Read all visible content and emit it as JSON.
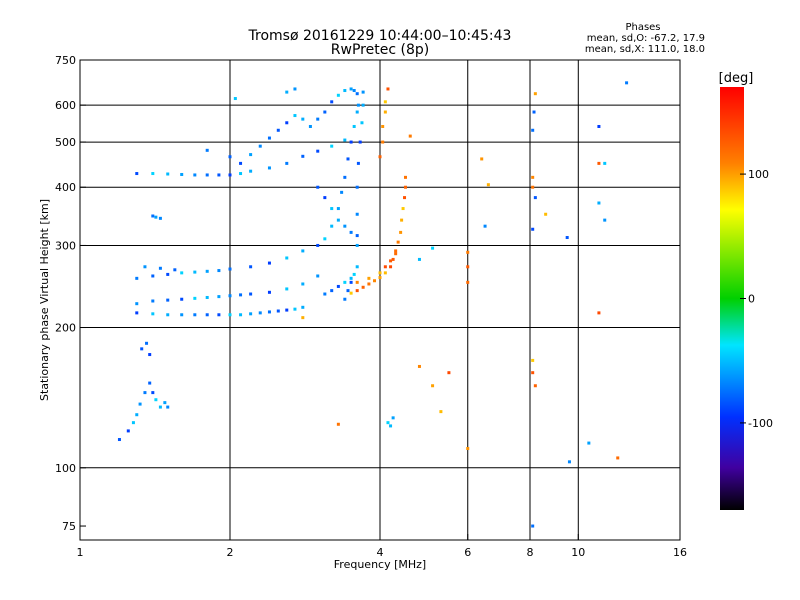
{
  "chart_data": {
    "type": "scatter",
    "title": "Tromsø 20161229 10:44:00–10:45:43",
    "subtitle": "RwPretec (8p)",
    "xlabel": "Frequency [MHz]",
    "ylabel": "Stationary phase Virtual Height [km]",
    "x_scale": "log",
    "y_scale": "log",
    "xlim": [
      1,
      16
    ],
    "ylim": [
      70,
      750
    ],
    "x_ticks": [
      1,
      2,
      4,
      6,
      8,
      10,
      16
    ],
    "y_ticks": [
      75,
      100,
      200,
      300,
      400,
      500,
      600,
      750
    ],
    "x_grid": [
      2,
      4,
      6,
      8,
      10
    ],
    "y_grid": [
      100,
      200,
      300,
      400,
      500,
      600
    ],
    "grid": true,
    "colorbar": {
      "label": "[deg]",
      "ticks": [
        100,
        0,
        -100
      ],
      "range": [
        -170,
        170
      ],
      "colormap": "rainbow"
    },
    "stats": {
      "heading": "Phases",
      "line_o": "mean, sd,O: -67.2, 17.9",
      "line_x": "mean, sd,X: 111.0, 18.0"
    },
    "series": [
      {
        "mode": "O",
        "phase": -67.2,
        "points": [
          [
            1.3,
            215
          ],
          [
            1.4,
            214
          ],
          [
            1.5,
            213
          ],
          [
            1.6,
            213
          ],
          [
            1.7,
            213
          ],
          [
            1.8,
            213
          ],
          [
            1.9,
            213
          ],
          [
            2.0,
            213
          ],
          [
            2.1,
            213
          ],
          [
            2.2,
            214
          ],
          [
            2.3,
            215
          ],
          [
            2.4,
            216
          ],
          [
            2.5,
            217
          ],
          [
            2.6,
            218
          ],
          [
            2.7,
            219
          ],
          [
            2.8,
            221
          ],
          [
            1.3,
            225
          ],
          [
            1.4,
            228
          ],
          [
            1.5,
            229
          ],
          [
            1.6,
            230
          ],
          [
            1.7,
            231
          ],
          [
            1.8,
            232
          ],
          [
            1.9,
            233
          ],
          [
            2.0,
            234
          ],
          [
            2.1,
            235
          ],
          [
            2.2,
            236
          ],
          [
            2.4,
            238
          ],
          [
            2.6,
            242
          ],
          [
            2.8,
            248
          ],
          [
            3.0,
            258
          ],
          [
            1.3,
            255
          ],
          [
            1.4,
            258
          ],
          [
            1.5,
            260
          ],
          [
            1.6,
            262
          ],
          [
            1.7,
            263
          ],
          [
            1.8,
            264
          ],
          [
            1.9,
            265
          ],
          [
            2.0,
            267
          ],
          [
            2.2,
            270
          ],
          [
            2.4,
            275
          ],
          [
            2.6,
            282
          ],
          [
            2.8,
            292
          ],
          [
            1.35,
            270
          ],
          [
            1.45,
            268
          ],
          [
            1.55,
            266
          ],
          [
            1.3,
            428
          ],
          [
            1.4,
            428
          ],
          [
            1.5,
            427
          ],
          [
            1.6,
            426
          ],
          [
            1.7,
            425
          ],
          [
            1.8,
            425
          ],
          [
            1.9,
            425
          ],
          [
            2.0,
            425
          ],
          [
            2.1,
            428
          ],
          [
            2.2,
            433
          ],
          [
            2.4,
            440
          ],
          [
            2.6,
            450
          ],
          [
            2.8,
            466
          ],
          [
            3.0,
            478
          ],
          [
            3.2,
            490
          ],
          [
            3.4,
            505
          ],
          [
            2.2,
            470
          ],
          [
            2.3,
            490
          ],
          [
            2.4,
            510
          ],
          [
            2.5,
            530
          ],
          [
            2.6,
            550
          ],
          [
            2.7,
            570
          ],
          [
            2.8,
            560
          ],
          [
            2.9,
            540
          ],
          [
            3.0,
            560
          ],
          [
            3.1,
            580
          ],
          [
            3.2,
            610
          ],
          [
            3.3,
            630
          ],
          [
            3.4,
            645
          ],
          [
            3.5,
            650
          ],
          [
            3.55,
            645
          ],
          [
            3.6,
            635
          ],
          [
            3.0,
            400
          ],
          [
            3.1,
            380
          ],
          [
            3.2,
            360
          ],
          [
            3.3,
            340
          ],
          [
            3.4,
            330
          ],
          [
            3.5,
            320
          ],
          [
            3.6,
            315
          ],
          [
            3.0,
            300
          ],
          [
            3.1,
            310
          ],
          [
            3.2,
            330
          ],
          [
            3.3,
            360
          ],
          [
            3.35,
            390
          ],
          [
            3.4,
            420
          ],
          [
            3.45,
            460
          ],
          [
            3.5,
            500
          ],
          [
            3.55,
            540
          ],
          [
            3.6,
            580
          ],
          [
            3.62,
            600
          ],
          [
            3.4,
            230
          ],
          [
            3.45,
            240
          ],
          [
            3.5,
            250
          ],
          [
            3.55,
            260
          ],
          [
            3.6,
            270
          ],
          [
            3.6,
            300
          ],
          [
            3.6,
            350
          ],
          [
            3.6,
            400
          ],
          [
            3.62,
            450
          ],
          [
            3.65,
            500
          ],
          [
            3.68,
            550
          ],
          [
            3.7,
            600
          ],
          [
            3.7,
            640
          ],
          [
            3.1,
            236
          ],
          [
            3.2,
            240
          ],
          [
            3.3,
            245
          ],
          [
            3.4,
            250
          ],
          [
            3.5,
            255
          ],
          [
            1.42,
            345
          ],
          [
            1.45,
            343
          ],
          [
            1.4,
            347
          ],
          [
            1.2,
            115
          ],
          [
            1.25,
            120
          ],
          [
            1.28,
            125
          ],
          [
            1.3,
            130
          ],
          [
            1.32,
            137
          ],
          [
            1.35,
            145
          ],
          [
            1.38,
            152
          ],
          [
            1.4,
            145
          ],
          [
            1.42,
            140
          ],
          [
            1.45,
            135
          ],
          [
            1.48,
            138
          ],
          [
            1.5,
            135
          ],
          [
            1.36,
            185
          ],
          [
            1.33,
            180
          ],
          [
            1.38,
            175
          ],
          [
            2.05,
            620
          ],
          [
            2.6,
            640
          ],
          [
            2.7,
            650
          ],
          [
            1.8,
            480
          ],
          [
            2.0,
            465
          ],
          [
            2.1,
            450
          ],
          [
            4.15,
            125
          ],
          [
            4.2,
            123
          ],
          [
            4.25,
            128
          ],
          [
            6.5,
            330
          ],
          [
            8.1,
            530
          ],
          [
            9.5,
            312
          ],
          [
            11.0,
            540
          ],
          [
            11.3,
            450
          ],
          [
            11.0,
            370
          ],
          [
            11.3,
            340
          ],
          [
            12.5,
            670
          ],
          [
            8.15,
            580
          ],
          [
            8.1,
            325
          ],
          [
            5.1,
            296
          ],
          [
            4.8,
            280
          ],
          [
            10.5,
            113
          ],
          [
            9.6,
            103
          ],
          [
            8.1,
            75
          ],
          [
            8.2,
            380
          ]
        ]
      },
      {
        "mode": "X",
        "phase": 111.0,
        "points": [
          [
            3.5,
            237
          ],
          [
            3.6,
            240
          ],
          [
            3.7,
            244
          ],
          [
            3.8,
            248
          ],
          [
            3.9,
            252
          ],
          [
            4.0,
            256
          ],
          [
            4.1,
            262
          ],
          [
            4.2,
            270
          ],
          [
            4.25,
            280
          ],
          [
            4.3,
            292
          ],
          [
            4.35,
            305
          ],
          [
            4.4,
            320
          ],
          [
            4.42,
            340
          ],
          [
            4.45,
            360
          ],
          [
            4.48,
            380
          ],
          [
            4.5,
            400
          ],
          [
            4.5,
            420
          ],
          [
            3.6,
            250
          ],
          [
            3.8,
            255
          ],
          [
            4.0,
            262
          ],
          [
            4.1,
            270
          ],
          [
            4.2,
            278
          ],
          [
            4.3,
            288
          ],
          [
            4.05,
            500
          ],
          [
            4.05,
            540
          ],
          [
            4.1,
            580
          ],
          [
            4.1,
            610
          ],
          [
            4.15,
            650
          ],
          [
            4.0,
            465
          ],
          [
            3.3,
            124
          ],
          [
            4.8,
            165
          ],
          [
            5.1,
            150
          ],
          [
            5.3,
            132
          ],
          [
            5.5,
            160
          ],
          [
            6.0,
            270
          ],
          [
            6.0,
            250
          ],
          [
            6.0,
            290
          ],
          [
            6.4,
            460
          ],
          [
            6.6,
            405
          ],
          [
            8.1,
            170
          ],
          [
            8.1,
            160
          ],
          [
            8.2,
            150
          ],
          [
            8.1,
            400
          ],
          [
            8.1,
            420
          ],
          [
            8.2,
            635
          ],
          [
            8.6,
            350
          ],
          [
            11.0,
            215
          ],
          [
            11.0,
            450
          ],
          [
            12.0,
            105
          ],
          [
            4.6,
            515
          ],
          [
            6.0,
            110
          ],
          [
            2.8,
            210
          ]
        ]
      }
    ]
  }
}
